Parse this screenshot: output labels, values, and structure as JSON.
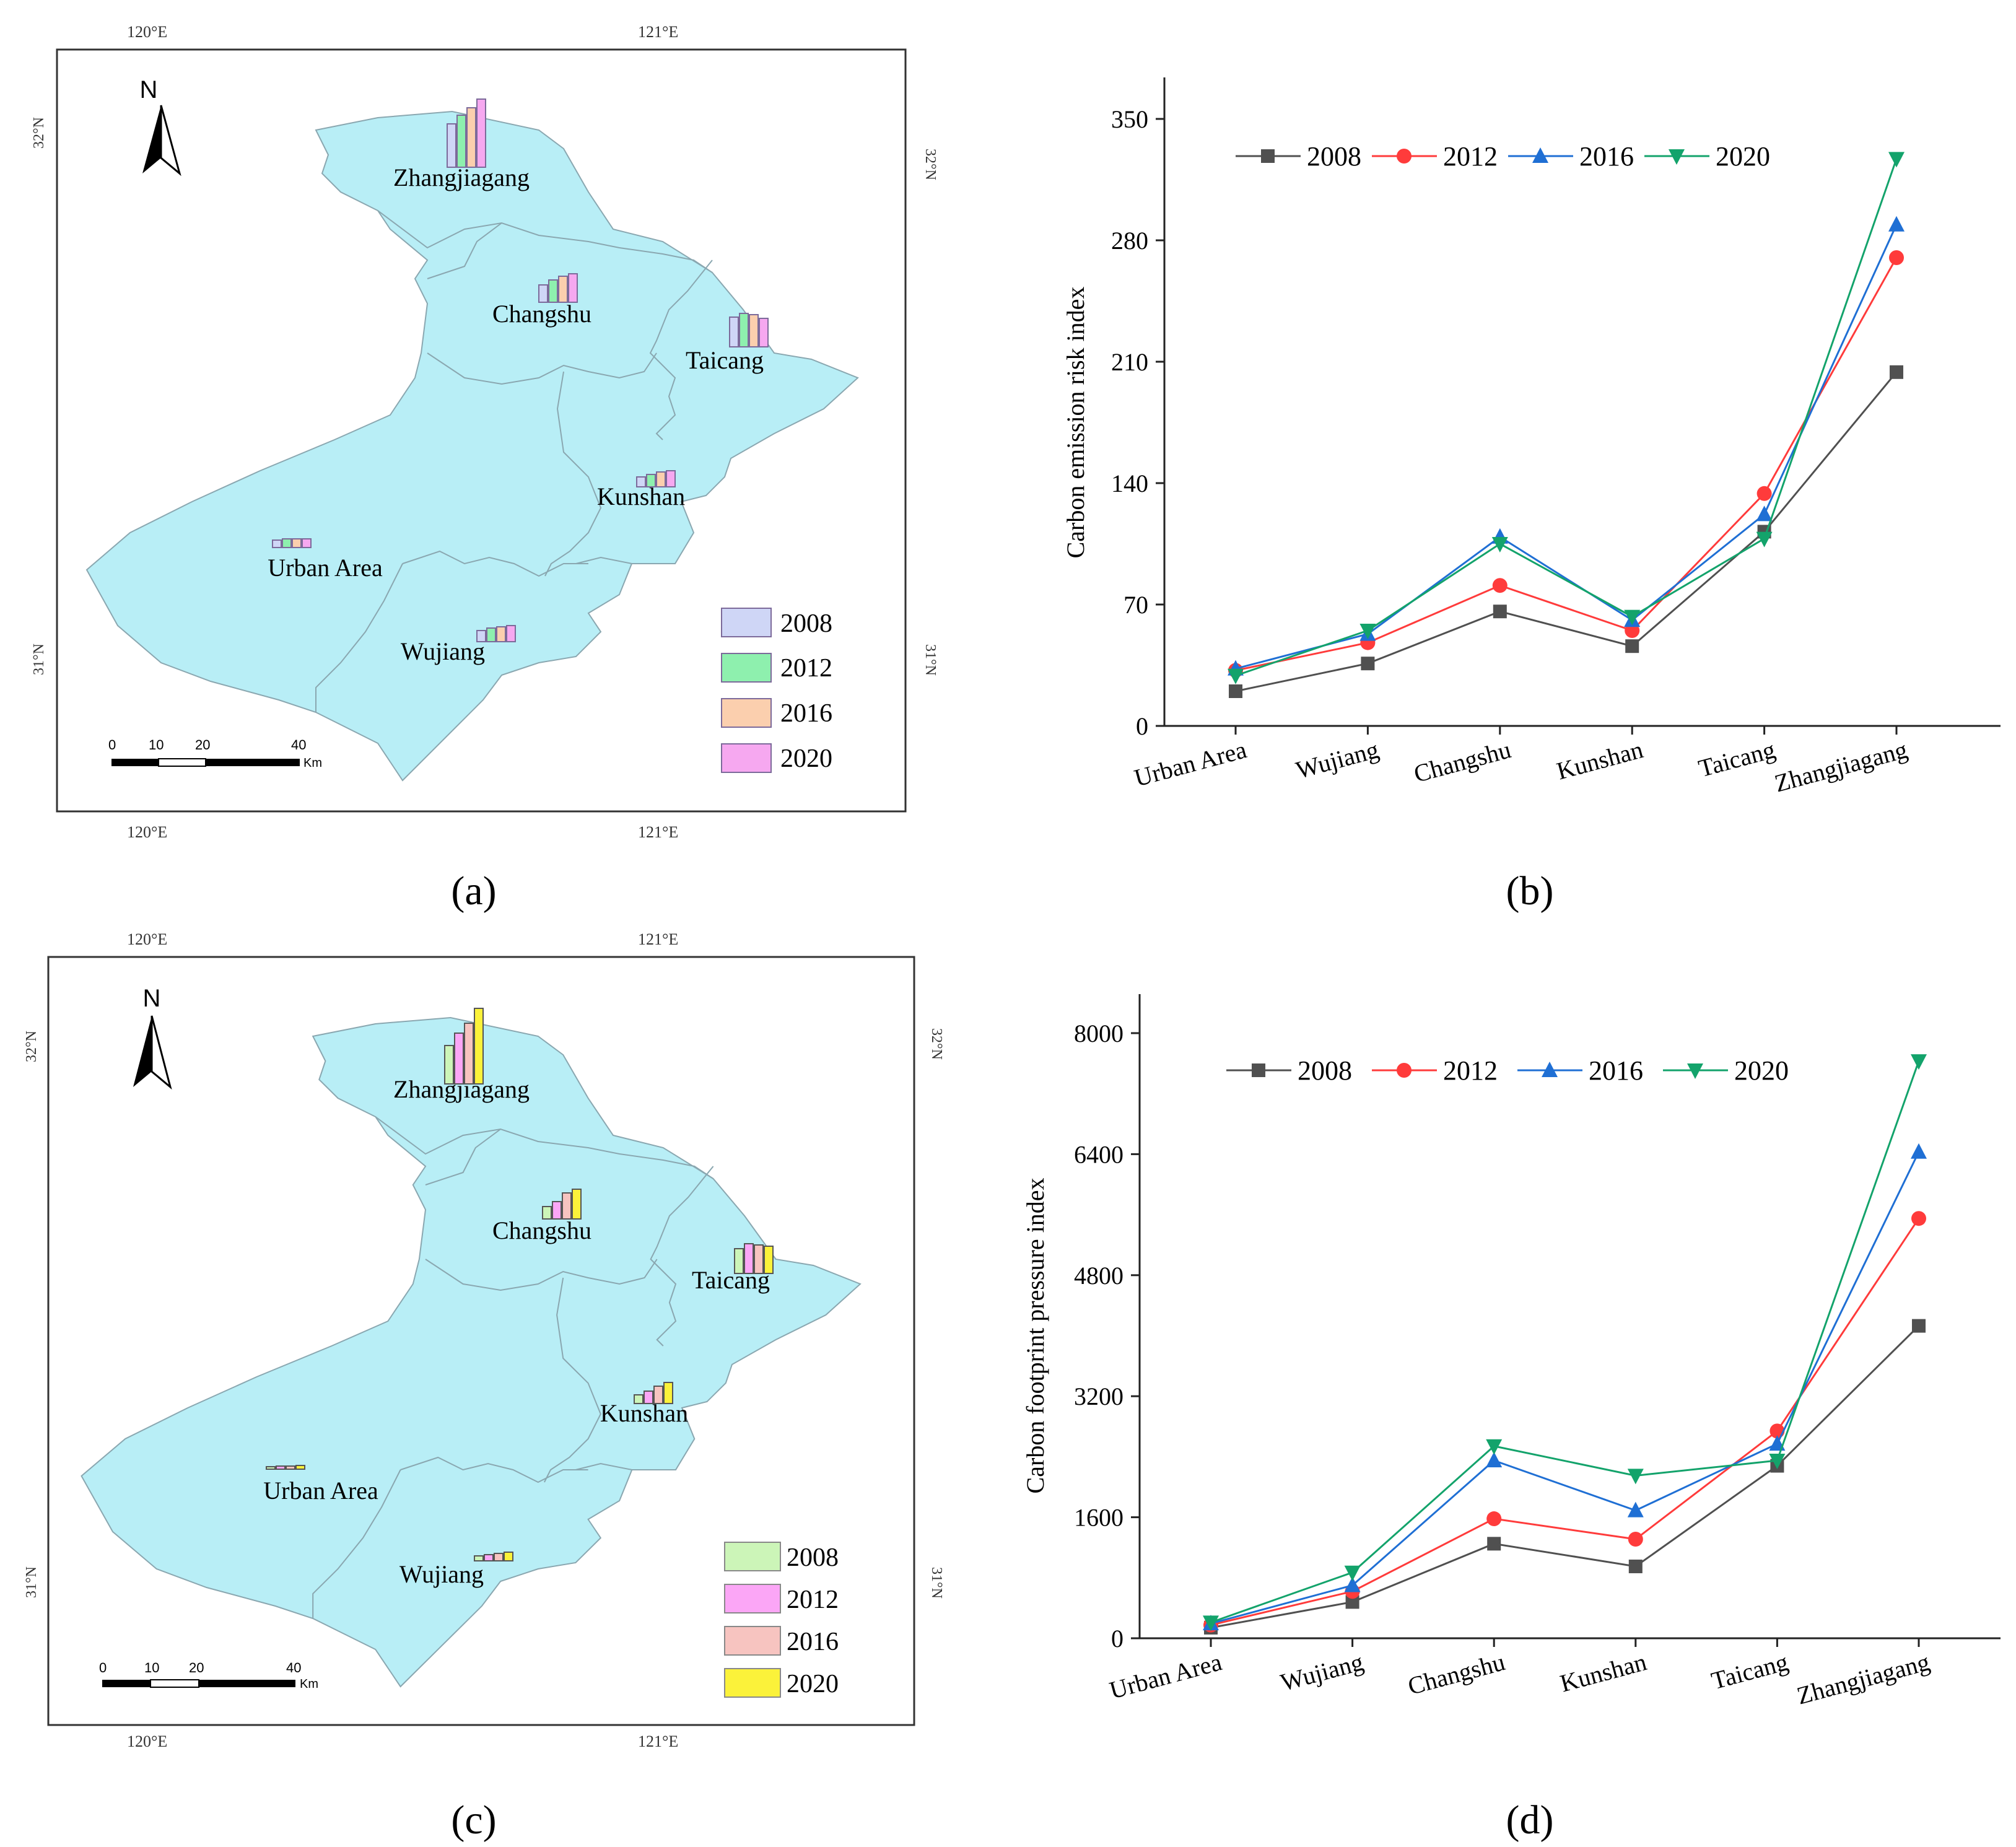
{
  "panels": {
    "a": {
      "label": "a"
    },
    "b": {
      "label": "b"
    },
    "c": {
      "label": "c"
    },
    "d": {
      "label": "d"
    }
  },
  "maps": {
    "coords": {
      "lon1": "120°E",
      "lon2": "121°E",
      "lat_top": "32°N",
      "lat_bottom": "31°N"
    },
    "north": "N",
    "scale": {
      "t0": "0",
      "t1": "10",
      "t2": "20",
      "t3": "40",
      "unit": "Km"
    },
    "regions": {
      "zhangjiagang": "Zhangjiagang",
      "changshu": "Changshu",
      "taicang": "Taicang",
      "kunshan": "Kunshan",
      "urban": "Urban Area",
      "wujiang": "Wujiang"
    },
    "map_a_legend": [
      {
        "year": "2008",
        "color": "#cfd6f6"
      },
      {
        "year": "2012",
        "color": "#8ef0ae"
      },
      {
        "year": "2016",
        "color": "#fbcfae"
      },
      {
        "year": "2020",
        "color": "#f6a8f0"
      }
    ],
    "map_c_legend": [
      {
        "year": "2008",
        "color": "#ccf5b8"
      },
      {
        "year": "2012",
        "color": "#fba6f6"
      },
      {
        "year": "2016",
        "color": "#f7c4c0"
      },
      {
        "year": "2020",
        "color": "#fbf23a"
      }
    ]
  },
  "chart_data": [
    {
      "type": "line",
      "panel": "b",
      "title": "",
      "xlabel": "",
      "ylabel": "Carbon emission risk index",
      "categories": [
        "Urban Area",
        "Wujiang",
        "Changshu",
        "Kunshan",
        "Taicang",
        "Zhangjiagang"
      ],
      "yticks": [
        "0",
        "70",
        "140",
        "210",
        "280",
        "350"
      ],
      "ylim": [
        0,
        350
      ],
      "legend_position": "top-left",
      "series": [
        {
          "name": "2008",
          "color": "#505050",
          "marker": "square",
          "values": [
            20,
            36,
            66,
            46,
            112,
            204
          ]
        },
        {
          "name": "2012",
          "color": "#ff3b3b",
          "marker": "circle",
          "values": [
            32,
            48,
            81,
            55,
            134,
            270
          ]
        },
        {
          "name": "2016",
          "color": "#1f6fd4",
          "marker": "triangle-up",
          "values": [
            33,
            53,
            109,
            61,
            122,
            289
          ]
        },
        {
          "name": "2020",
          "color": "#13a36b",
          "marker": "triangle-down",
          "values": [
            29,
            55,
            105,
            63,
            108,
            327
          ]
        }
      ]
    },
    {
      "type": "line",
      "panel": "d",
      "title": "",
      "xlabel": "",
      "ylabel": "Carbon footprint pressure index",
      "categories": [
        "Urban Area",
        "Wujiang",
        "Changshu",
        "Kunshan",
        "Taicang",
        "Zhangjiagang"
      ],
      "yticks": [
        "0",
        "1600",
        "3200",
        "4800",
        "6400",
        "8000"
      ],
      "ylim": [
        0,
        8000
      ],
      "legend_position": "top-left",
      "series": [
        {
          "name": "2008",
          "color": "#505050",
          "marker": "square",
          "values": [
            140,
            480,
            1250,
            950,
            2280,
            4130
          ]
        },
        {
          "name": "2012",
          "color": "#ff3b3b",
          "marker": "circle",
          "values": [
            175,
            620,
            1580,
            1310,
            2740,
            5550
          ]
        },
        {
          "name": "2016",
          "color": "#1f6fd4",
          "marker": "triangle-up",
          "values": [
            195,
            700,
            2350,
            1690,
            2570,
            6430
          ]
        },
        {
          "name": "2020",
          "color": "#13a36b",
          "marker": "triangle-down",
          "values": [
            210,
            870,
            2540,
            2150,
            2350,
            7630
          ]
        }
      ]
    }
  ]
}
